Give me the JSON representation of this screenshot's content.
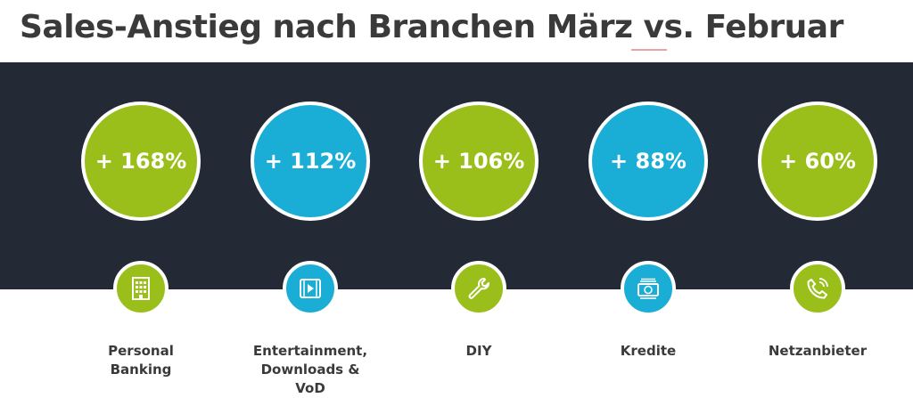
{
  "title": "Sales-Anstieg nach Branchen März vs. Februar",
  "colors": {
    "green": "#9bbf1a",
    "blue": "#1aaed6",
    "dark": "#232a36",
    "text": "#3a3a3a"
  },
  "items": [
    {
      "value": "+ 168%",
      "color": "#9bbf1a",
      "icon": "bank-building-icon",
      "label_lines": [
        "Personal",
        "Banking"
      ]
    },
    {
      "value": "+ 112%",
      "color": "#1aaed6",
      "icon": "film-play-icon",
      "label_lines": [
        "Entertainment,",
        "Downloads &",
        "VoD"
      ]
    },
    {
      "value": "+ 106%",
      "color": "#9bbf1a",
      "icon": "wrench-icon",
      "label_lines": [
        "DIY"
      ]
    },
    {
      "value": "+ 88%",
      "color": "#1aaed6",
      "icon": "money-bills-icon",
      "label_lines": [
        "Kredite"
      ]
    },
    {
      "value": "+ 60%",
      "color": "#9bbf1a",
      "icon": "phone-ringing-icon",
      "label_lines": [
        "Netzanbieter"
      ]
    }
  ]
}
